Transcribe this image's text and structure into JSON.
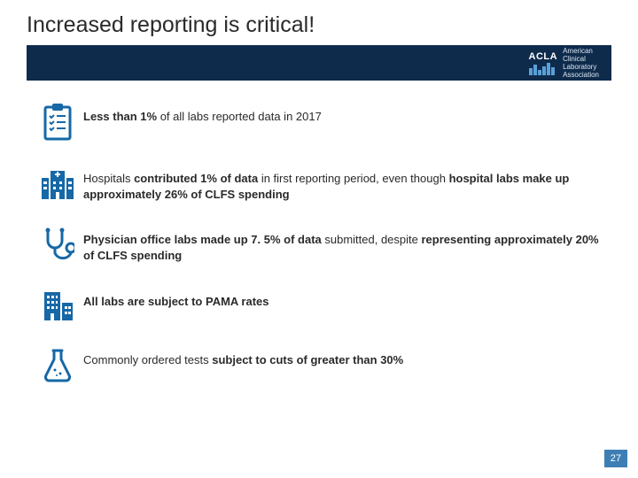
{
  "title": "Increased reporting is critical!",
  "logo": {
    "acronym": "ACLA",
    "line1": "American",
    "line2": "Clinical",
    "line3": "Laboratory",
    "line4": "Association"
  },
  "icon_color": "#1668a6",
  "bullets": [
    {
      "icon": "clipboard-checklist-icon",
      "segments": [
        {
          "t": "Less than 1% ",
          "b": true
        },
        {
          "t": "of all labs reported data in 2017",
          "b": false
        }
      ]
    },
    {
      "icon": "hospital-icon",
      "segments": [
        {
          "t": "Hospitals ",
          "b": false
        },
        {
          "t": "contributed 1% of data",
          "b": true
        },
        {
          "t": " in first reporting period, even though ",
          "b": false
        },
        {
          "t": "hospital labs make up approximately 26% of CLFS spending",
          "b": true
        }
      ]
    },
    {
      "icon": "stethoscope-icon",
      "segments": [
        {
          "t": "Physician office labs made up 7. 5% of data ",
          "b": true
        },
        {
          "t": "submitted, despite ",
          "b": false
        },
        {
          "t": "representing approximately 20% of CLFS spending",
          "b": true
        }
      ]
    },
    {
      "icon": "building-icon",
      "segments": [
        {
          "t": "All labs are subject to PAMA rates",
          "b": true
        }
      ]
    },
    {
      "icon": "flask-icon",
      "segments": [
        {
          "t": "Commonly ordered tests ",
          "b": false
        },
        {
          "t": "subject to cuts of greater than 30%",
          "b": true
        }
      ]
    }
  ],
  "page_number": "27",
  "logo_bar_heights": [
    8,
    12,
    6,
    10,
    14,
    9
  ]
}
